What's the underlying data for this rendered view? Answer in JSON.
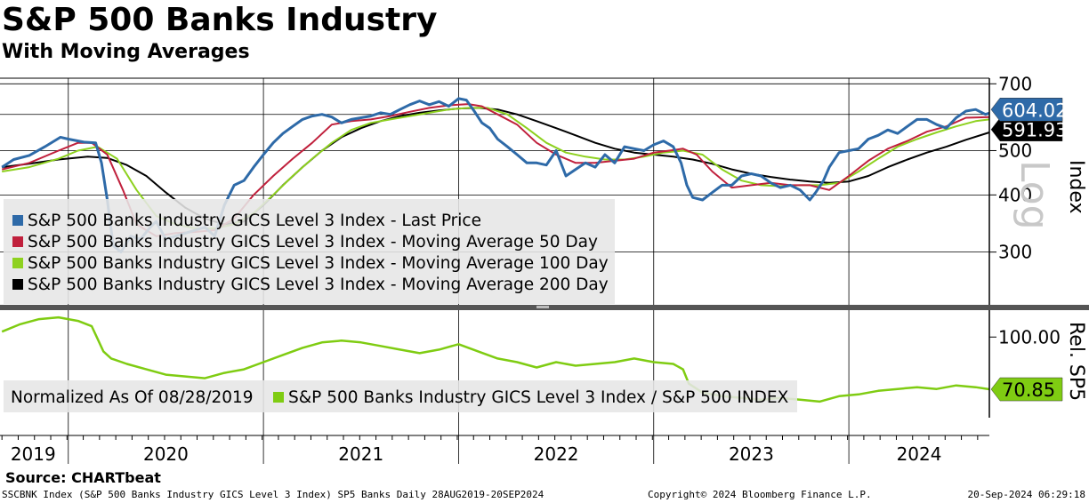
{
  "header": {
    "title": "S&P 500 Banks Industry",
    "subtitle": "With Moving Averages"
  },
  "source": "Source: CHARTbeat",
  "footer": {
    "left": "SSCBNK Index (S&P 500 Banks Industry GICS Level 3 Index) SP5 Banks  Daily 28AUG2019-20SEP2024",
    "middle": "Copyright© 2024 Bloomberg Finance L.P.",
    "right": "20-Sep-2024 06:29:18"
  },
  "colors": {
    "price": "#2e6aa8",
    "ma50": "#c0203c",
    "ma100": "#8ed11f",
    "ma200": "#000000",
    "relative": "#7fcc12",
    "price_label_bg": "#2e6aa8",
    "relative_label_bg": "#7fcc12"
  },
  "chart_data": [
    {
      "type": "line",
      "panel": "upper",
      "scale": "log",
      "scale_label": "Log",
      "ylabel": "Index",
      "ylim": [
        230,
        720
      ],
      "yticks": [
        300,
        400,
        500,
        700
      ],
      "ytick_labels": [
        "300",
        "400",
        "500",
        "700"
      ],
      "xlim": [
        2019.65,
        2024.72
      ],
      "year_labels": [
        "2019",
        "2020",
        "2021",
        "2022",
        "2023",
        "2024"
      ],
      "last_price_label": "604.02",
      "last_ma_label": "591.93",
      "legend": [
        "S&P 500 Banks Industry GICS Level 3 Index - Last Price",
        "S&P 500 Banks Industry GICS Level 3 Index - Moving Average 50 Day",
        "S&P 500 Banks Industry GICS Level 3 Index - Moving Average 100 Day",
        "S&P 500 Banks Industry GICS Level 3 Index - Moving Average 200 Day"
      ],
      "series": [
        {
          "key": "price",
          "x": [
            2019.66,
            2019.72,
            2019.8,
            2019.88,
            2019.96,
            2020.0,
            2020.08,
            2020.14,
            2020.17,
            2020.2,
            2020.23,
            2020.27,
            2020.32,
            2020.37,
            2020.42,
            2020.45,
            2020.5,
            2020.55,
            2020.6,
            2020.65,
            2020.7,
            2020.75,
            2020.8,
            2020.85,
            2020.9,
            2020.95,
            2021.0,
            2021.05,
            2021.1,
            2021.15,
            2021.2,
            2021.25,
            2021.3,
            2021.35,
            2021.4,
            2021.45,
            2021.5,
            2021.55,
            2021.6,
            2021.65,
            2021.7,
            2021.75,
            2021.8,
            2021.85,
            2021.9,
            2021.95,
            2022.0,
            2022.04,
            2022.08,
            2022.12,
            2022.16,
            2022.2,
            2022.25,
            2022.3,
            2022.35,
            2022.4,
            2022.45,
            2022.5,
            2022.55,
            2022.6,
            2022.65,
            2022.7,
            2022.75,
            2022.8,
            2022.85,
            2022.9,
            2022.95,
            2023.0,
            2023.05,
            2023.1,
            2023.14,
            2023.17,
            2023.2,
            2023.25,
            2023.3,
            2023.35,
            2023.4,
            2023.45,
            2023.5,
            2023.55,
            2023.6,
            2023.65,
            2023.7,
            2023.75,
            2023.8,
            2023.83,
            2023.87,
            2023.9,
            2023.95,
            2024.0,
            2024.05,
            2024.1,
            2024.15,
            2024.2,
            2024.25,
            2024.3,
            2024.35,
            2024.4,
            2024.45,
            2024.5,
            2024.55,
            2024.6,
            2024.65,
            2024.7,
            2024.72
          ],
          "y": [
            460,
            478,
            488,
            510,
            535,
            530,
            522,
            520,
            470,
            390,
            310,
            300,
            325,
            320,
            340,
            350,
            320,
            325,
            330,
            335,
            340,
            325,
            380,
            420,
            430,
            460,
            490,
            520,
            545,
            565,
            585,
            595,
            600,
            592,
            575,
            585,
            590,
            595,
            605,
            600,
            615,
            630,
            642,
            630,
            640,
            625,
            650,
            645,
            610,
            575,
            560,
            530,
            510,
            490,
            470,
            470,
            465,
            500,
            440,
            455,
            470,
            460,
            490,
            470,
            510,
            505,
            500,
            515,
            525,
            510,
            470,
            420,
            395,
            390,
            405,
            420,
            420,
            440,
            445,
            440,
            425,
            415,
            420,
            410,
            390,
            405,
            430,
            460,
            495,
            500,
            505,
            530,
            540,
            555,
            545,
            565,
            585,
            585,
            570,
            560,
            590,
            610,
            615,
            600,
            604
          ]
        },
        {
          "key": "ma50",
          "x": [
            2019.66,
            2019.8,
            2019.95,
            2020.05,
            2020.12,
            2020.2,
            2020.28,
            2020.35,
            2020.45,
            2020.55,
            2020.65,
            2020.75,
            2020.85,
            2020.95,
            2021.05,
            2021.15,
            2021.25,
            2021.35,
            2021.45,
            2021.55,
            2021.65,
            2021.75,
            2021.85,
            2021.95,
            2022.05,
            2022.12,
            2022.2,
            2022.3,
            2022.4,
            2022.5,
            2022.6,
            2022.7,
            2022.8,
            2022.9,
            2023.0,
            2023.08,
            2023.15,
            2023.22,
            2023.3,
            2023.4,
            2023.5,
            2023.6,
            2023.7,
            2023.8,
            2023.9,
            2024.0,
            2024.1,
            2024.2,
            2024.3,
            2024.4,
            2024.5,
            2024.6,
            2024.72
          ],
          "y": [
            455,
            470,
            500,
            520,
            520,
            490,
            410,
            345,
            325,
            330,
            332,
            335,
            355,
            400,
            440,
            480,
            520,
            570,
            580,
            585,
            595,
            608,
            620,
            628,
            632,
            625,
            600,
            570,
            520,
            490,
            470,
            470,
            475,
            480,
            495,
            500,
            505,
            490,
            450,
            415,
            420,
            425,
            420,
            420,
            410,
            440,
            475,
            505,
            525,
            550,
            565,
            590,
            592
          ]
        },
        {
          "key": "ma100",
          "x": [
            2019.66,
            2019.8,
            2019.95,
            2020.05,
            2020.15,
            2020.25,
            2020.35,
            2020.45,
            2020.55,
            2020.65,
            2020.75,
            2020.85,
            2020.95,
            2021.05,
            2021.15,
            2021.25,
            2021.35,
            2021.45,
            2021.55,
            2021.65,
            2021.75,
            2021.85,
            2021.95,
            2022.05,
            2022.15,
            2022.25,
            2022.35,
            2022.45,
            2022.55,
            2022.65,
            2022.75,
            2022.85,
            2022.95,
            2023.05,
            2023.15,
            2023.25,
            2023.35,
            2023.45,
            2023.55,
            2023.65,
            2023.75,
            2023.85,
            2023.95,
            2024.05,
            2024.15,
            2024.25,
            2024.35,
            2024.45,
            2024.55,
            2024.65,
            2024.72
          ],
          "y": [
            450,
            460,
            480,
            500,
            510,
            480,
            410,
            360,
            345,
            338,
            338,
            345,
            365,
            400,
            440,
            480,
            520,
            555,
            575,
            585,
            595,
            605,
            615,
            620,
            620,
            600,
            560,
            520,
            495,
            485,
            478,
            478,
            485,
            495,
            500,
            490,
            455,
            430,
            420,
            418,
            420,
            420,
            425,
            450,
            480,
            510,
            530,
            548,
            565,
            580,
            585
          ]
        },
        {
          "key": "ma200",
          "x": [
            2019.66,
            2019.8,
            2019.95,
            2020.1,
            2020.2,
            2020.3,
            2020.4,
            2020.5,
            2020.6,
            2020.7,
            2020.8,
            2020.9,
            2021.0,
            2021.1,
            2021.2,
            2021.3,
            2021.4,
            2021.5,
            2021.6,
            2021.7,
            2021.8,
            2021.9,
            2022.0,
            2022.1,
            2022.2,
            2022.3,
            2022.4,
            2022.5,
            2022.6,
            2022.7,
            2022.8,
            2022.9,
            2023.0,
            2023.1,
            2023.2,
            2023.3,
            2023.4,
            2023.5,
            2023.6,
            2023.7,
            2023.8,
            2023.9,
            2024.0,
            2024.1,
            2024.2,
            2024.3,
            2024.4,
            2024.5,
            2024.6,
            2024.72
          ],
          "y": [
            460,
            468,
            478,
            485,
            482,
            465,
            440,
            405,
            375,
            355,
            345,
            350,
            380,
            420,
            460,
            500,
            535,
            560,
            580,
            595,
            605,
            612,
            618,
            620,
            615,
            600,
            580,
            560,
            540,
            520,
            505,
            495,
            490,
            485,
            478,
            468,
            455,
            445,
            438,
            432,
            428,
            425,
            428,
            440,
            460,
            478,
            495,
            510,
            528,
            548
          ]
        }
      ]
    },
    {
      "type": "line",
      "panel": "lower",
      "ylabel": "Rel. SP5",
      "yticks": [
        100
      ],
      "ytick_labels": [
        "100.00"
      ],
      "ylim": [
        55,
        115
      ],
      "last_value_label": "70.85",
      "normalized_label": "Normalized As Of 08/28/2019",
      "legend": [
        "S&P 500 Banks Industry GICS Level 3 Index / S&P 500 INDEX"
      ],
      "series": [
        {
          "key": "relative",
          "x": [
            2019.66,
            2019.75,
            2019.85,
            2019.95,
            2020.05,
            2020.12,
            2020.15,
            2020.18,
            2020.22,
            2020.3,
            2020.4,
            2020.5,
            2020.6,
            2020.7,
            2020.8,
            2020.9,
            2021.0,
            2021.1,
            2021.2,
            2021.3,
            2021.4,
            2021.5,
            2021.6,
            2021.7,
            2021.8,
            2021.9,
            2022.0,
            2022.1,
            2022.2,
            2022.3,
            2022.4,
            2022.5,
            2022.6,
            2022.7,
            2022.8,
            2022.9,
            2023.0,
            2023.1,
            2023.15,
            2023.18,
            2023.25,
            2023.35,
            2023.45,
            2023.55,
            2023.65,
            2023.75,
            2023.85,
            2023.95,
            2024.05,
            2024.15,
            2024.25,
            2024.35,
            2024.45,
            2024.55,
            2024.65,
            2024.72
          ],
          "y": [
            103,
            107,
            110,
            111,
            109,
            106,
            99,
            92,
            88,
            85,
            82,
            79,
            78,
            77,
            80,
            82,
            86,
            90,
            94,
            97,
            98,
            97,
            95,
            93,
            91,
            93,
            96,
            92,
            88,
            86,
            83,
            86,
            84,
            85,
            86,
            88,
            86,
            85,
            82,
            74,
            69,
            67,
            66,
            65,
            66,
            65,
            64,
            67,
            68,
            70,
            71,
            72,
            71,
            73,
            72,
            70.85
          ]
        }
      ]
    }
  ]
}
